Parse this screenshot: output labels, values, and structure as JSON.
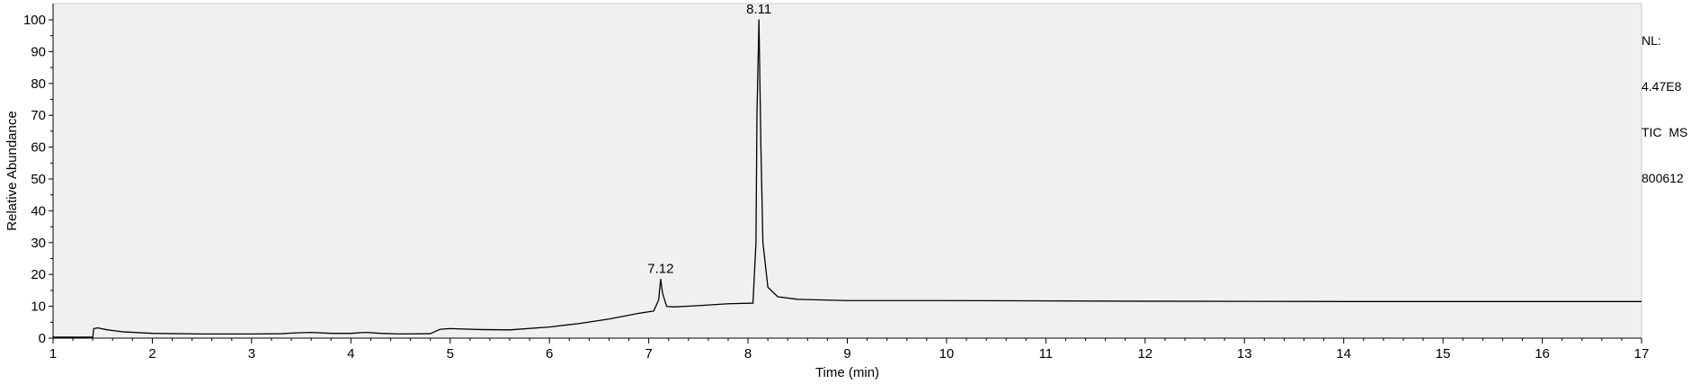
{
  "chart_data": {
    "type": "line",
    "title": "",
    "xlabel": "Time (min)",
    "ylabel": "Relative Abundance",
    "xlim": [
      1,
      17
    ],
    "ylim": [
      0,
      100
    ],
    "x_ticks": [
      1,
      2,
      3,
      4,
      5,
      6,
      7,
      8,
      9,
      10,
      11,
      12,
      13,
      14,
      15,
      16,
      17
    ],
    "y_ticks": [
      0,
      10,
      20,
      30,
      40,
      50,
      60,
      70,
      80,
      90,
      100
    ],
    "grid": false,
    "colors": {
      "plot_background": "#f0f0f0",
      "trace": "#000000",
      "axis": "#000000"
    },
    "info": {
      "nl_label": "NL:",
      "nl_value": "4.47E8",
      "scan_filter": "TIC  MS",
      "file_name": "800612"
    },
    "peak_annotations": [
      {
        "x": 7.12,
        "y": 18.5,
        "label": "7.12"
      },
      {
        "x": 8.11,
        "y": 100,
        "label": "8.11"
      }
    ],
    "series": [
      {
        "values": [
          [
            1.0,
            0.3
          ],
          [
            1.4,
            0.3
          ],
          [
            1.41,
            3.0
          ],
          [
            1.45,
            3.2
          ],
          [
            1.55,
            2.6
          ],
          [
            1.7,
            2.0
          ],
          [
            2.0,
            1.5
          ],
          [
            2.5,
            1.3
          ],
          [
            3.0,
            1.3
          ],
          [
            3.3,
            1.4
          ],
          [
            3.4,
            1.6
          ],
          [
            3.6,
            1.8
          ],
          [
            3.8,
            1.5
          ],
          [
            4.0,
            1.5
          ],
          [
            4.15,
            1.8
          ],
          [
            4.3,
            1.5
          ],
          [
            4.5,
            1.3
          ],
          [
            4.8,
            1.4
          ],
          [
            4.9,
            2.8
          ],
          [
            5.0,
            3.0
          ],
          [
            5.3,
            2.7
          ],
          [
            5.6,
            2.6
          ],
          [
            6.0,
            3.5
          ],
          [
            6.3,
            4.6
          ],
          [
            6.6,
            6.0
          ],
          [
            6.9,
            7.8
          ],
          [
            7.05,
            8.5
          ],
          [
            7.1,
            12.0
          ],
          [
            7.12,
            18.5
          ],
          [
            7.14,
            14.0
          ],
          [
            7.18,
            10.0
          ],
          [
            7.25,
            9.8
          ],
          [
            7.5,
            10.2
          ],
          [
            7.8,
            10.8
          ],
          [
            8.05,
            11.0
          ],
          [
            8.08,
            30.0
          ],
          [
            8.09,
            70.0
          ],
          [
            8.11,
            100.0
          ],
          [
            8.13,
            60.0
          ],
          [
            8.15,
            30.0
          ],
          [
            8.2,
            16.0
          ],
          [
            8.3,
            13.0
          ],
          [
            8.5,
            12.2
          ],
          [
            9.0,
            11.8
          ],
          [
            10.0,
            11.8
          ],
          [
            12.0,
            11.6
          ],
          [
            14.0,
            11.5
          ],
          [
            16.0,
            11.5
          ],
          [
            17.0,
            11.5
          ]
        ]
      }
    ]
  }
}
